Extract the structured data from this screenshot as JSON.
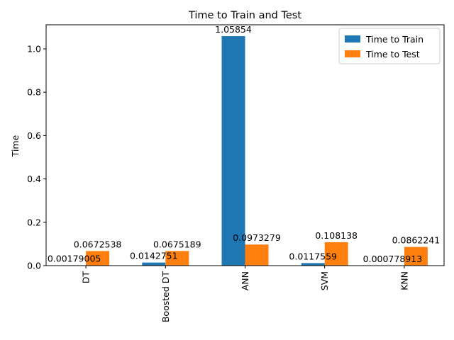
{
  "chart_data": {
    "type": "bar",
    "title": "Time to Train and Test",
    "xlabel": "",
    "ylabel": "Time",
    "categories": [
      "DT",
      "Boosted DT",
      "ANN",
      "SVM",
      "KNN"
    ],
    "series": [
      {
        "name": "Time to Train",
        "color": "#1f77b4",
        "values": [
          0.00179005,
          0.0142751,
          1.05854,
          0.0117559,
          0.000778913
        ],
        "labels": [
          "0.00179005",
          "0.0142751",
          "1.05854",
          "0.0117559",
          "0.000778913"
        ]
      },
      {
        "name": "Time to Test",
        "color": "#ff7f0e",
        "values": [
          0.0672538,
          0.0675189,
          0.0973279,
          0.108138,
          0.0862241
        ],
        "labels": [
          "0.0672538",
          "0.0675189",
          "0.0973279",
          "0.108138",
          "0.0862241"
        ]
      }
    ],
    "ylim": [
      0,
      1.111
    ],
    "yticks": [
      "0.0",
      "0.2",
      "0.4",
      "0.6",
      "0.8",
      "1.0"
    ],
    "ytick_values": [
      0,
      0.2,
      0.4,
      0.6,
      0.8,
      1.0
    ],
    "grid": false,
    "legend": "top-right"
  }
}
